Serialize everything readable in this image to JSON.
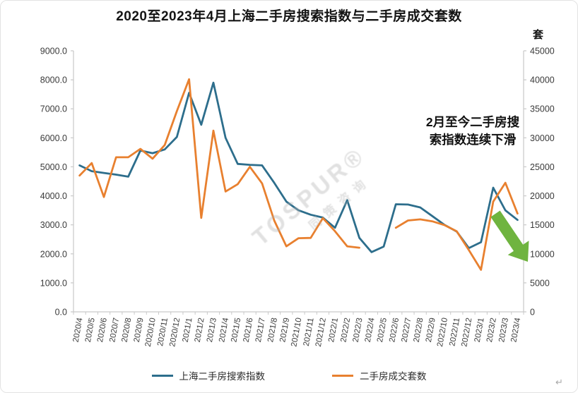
{
  "title": "2020至2023年4月上海二手房搜索指数与二手房成交套数",
  "right_axis_unit": "套",
  "annotation": {
    "line1": "2月至今二手房搜",
    "line2": "索指数连续下滑"
  },
  "watermark": {
    "brand": "TOSPUR®",
    "subtext": "同策咨询"
  },
  "return_mark": "↵",
  "legend": [
    {
      "label": "上海二手房搜索指数",
      "color": "#2D6E8C"
    },
    {
      "label": "二手房成交套数",
      "color": "#E8802F"
    }
  ],
  "colors": {
    "blue_line": "#2D6E8C",
    "orange_line": "#E8802F",
    "arrow_green": "#6FB43F",
    "axis_line": "#C9C9C9",
    "tick_text": "#3A3A3A"
  },
  "chart_data": {
    "type": "line",
    "categories": [
      "2020/4",
      "2020/5",
      "2020/6",
      "2020/7",
      "2020/8",
      "2020/9",
      "2020/10",
      "2020/11",
      "2020/12",
      "2021/1",
      "2021/2",
      "2021/3",
      "2021/4",
      "2021/5",
      "2021/6",
      "2021/7",
      "2021/8",
      "2021/9",
      "2021/10",
      "2021/11",
      "2021/12",
      "2022/1",
      "2022/2",
      "2022/3",
      "2022/4",
      "2022/5",
      "2022/6",
      "2022/7",
      "2022/8",
      "2022/9",
      "2022/10",
      "2022/11",
      "2022/12",
      "2023/1",
      "2023/2",
      "2023/3",
      "2023/4"
    ],
    "series": [
      {
        "name": "上海二手房搜索指数",
        "axis": "left",
        "color": "#2D6E8C",
        "values": [
          5050,
          4850,
          4790,
          4730,
          4660,
          5560,
          5470,
          5600,
          6030,
          7550,
          6450,
          7900,
          6000,
          5100,
          5070,
          5050,
          4450,
          3800,
          3500,
          3350,
          3250,
          2900,
          3850,
          2550,
          2060,
          2250,
          3710,
          3700,
          3600,
          3300,
          3000,
          2770,
          2200,
          2400,
          4280,
          3500,
          3170
        ]
      },
      {
        "name": "二手房成交套数",
        "axis": "right",
        "color": "#E8802F",
        "values": [
          23500,
          25650,
          19800,
          26650,
          26650,
          28100,
          26400,
          28750,
          34600,
          40100,
          16200,
          31250,
          20750,
          22000,
          25000,
          22150,
          15750,
          11300,
          12700,
          12750,
          16150,
          13900,
          11300,
          11050,
          null,
          null,
          14500,
          15750,
          15950,
          15600,
          14950,
          13900,
          10650,
          7250,
          19000,
          22250,
          16950
        ]
      }
    ],
    "left_axis": {
      "min": 0,
      "max": 9000,
      "step": 1000
    },
    "right_axis": {
      "min": 0,
      "max": 45000,
      "step": 5000,
      "unit": "套"
    },
    "grid": false,
    "legend_position": "bottom",
    "notes": "orange series has data gap at 2022/4 and 2022/5"
  }
}
